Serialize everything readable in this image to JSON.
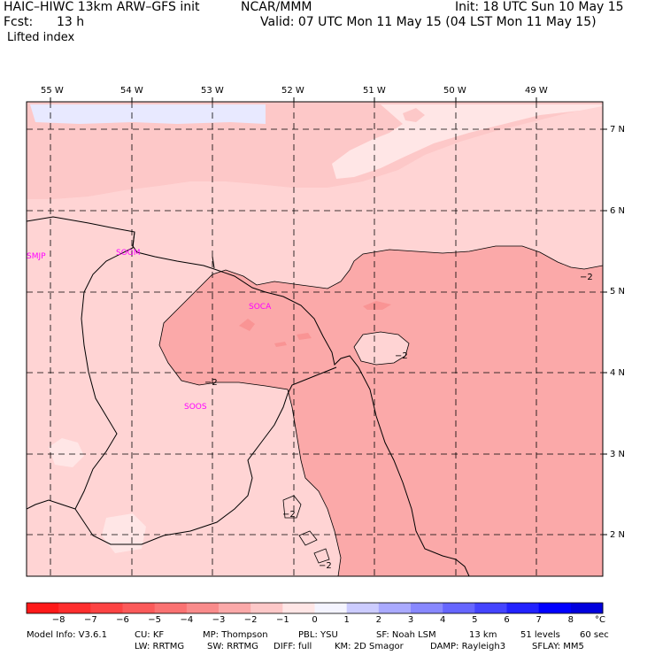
{
  "header": {
    "model": "HAIC–HIWC 13km ARW–GFS init",
    "org": "NCAR/MMM",
    "init": "Init: 18 UTC Sun 10 May 15",
    "fcst_label": "Fcst:",
    "fcst_value": "13 h",
    "valid": "Valid: 07 UTC Mon 11 May 15 (04 LST Mon 11 May 15)",
    "field": "Lifted index"
  },
  "map": {
    "lon_labels": [
      "55 W",
      "54 W",
      "53 W",
      "52 W",
      "51 W",
      "50 W",
      "49 W"
    ],
    "lat_labels": [
      "7 N",
      "6 N",
      "5 N",
      "4 N",
      "3 N",
      "2 N"
    ],
    "stations": [
      "SMJP",
      "SOGM",
      "SOCA",
      "SOOS"
    ],
    "contour_label": "−2",
    "fill_colors": {
      "light": "#ffd4d4",
      "mid": "#fdc5c5",
      "dark": "#fba9a9",
      "darker": "#f99494",
      "palest": "#ffeaea",
      "blue": "#e8e9ff"
    }
  },
  "colorbar": {
    "ticks": [
      "−8",
      "−7",
      "−6",
      "−5",
      "−4",
      "−3",
      "−2",
      "−1",
      "0",
      "1",
      "2",
      "3",
      "4",
      "5",
      "6",
      "7",
      "8"
    ],
    "unit": "°C",
    "colors": [
      "#ff1919",
      "#ff2e2e",
      "#fd4343",
      "#fb5a5a",
      "#fa7272",
      "#f98b8b",
      "#fba9a9",
      "#fdc8c8",
      "#ffe6e6",
      "#f4f4ff",
      "#ccccff",
      "#aaaaff",
      "#8888ff",
      "#6666ff",
      "#4444ff",
      "#2222ff",
      "#0000ff",
      "#0000dd"
    ]
  },
  "footer": {
    "model_info": "Model Info: V3.6.1",
    "cu": "CU: KF",
    "mp": "MP: Thompson",
    "pbl": "PBL: YSU",
    "sf": "SF: Noah LSM",
    "res": "13 km",
    "levels": "51 levels",
    "dt": "60 sec",
    "lw": "LW: RRTMG",
    "sw": "SW: RRTMG",
    "diff": "DIFF: full",
    "km": "KM: 2D Smagor",
    "damp": "DAMP: Rayleigh3",
    "sflay": "SFLAY: MM5"
  }
}
